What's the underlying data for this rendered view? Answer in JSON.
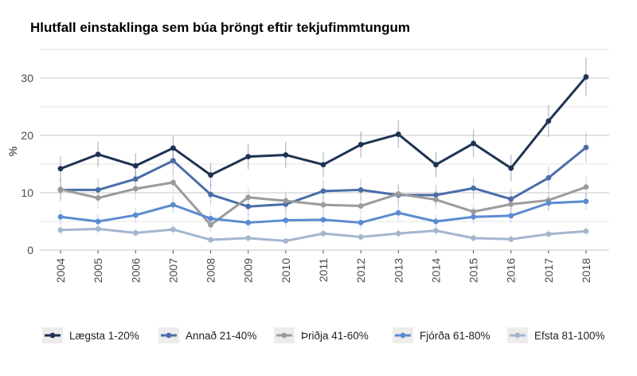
{
  "chart_data": {
    "type": "line",
    "title": "Hlutfall einstaklinga sem búa þröngt eftir tekjufimmtungum",
    "xlabel": "",
    "ylabel": "%",
    "ylim": [
      0,
      35
    ],
    "yticks": [
      0,
      10,
      20,
      30
    ],
    "grid": true,
    "legend_position": "bottom",
    "x": [
      "2004",
      "2005",
      "2006",
      "2007",
      "2008",
      "2009",
      "2010",
      "2011",
      "2012",
      "2013",
      "2014",
      "2015",
      "2016",
      "2017",
      "2018"
    ],
    "series": [
      {
        "name": "Lægsta 1-20%",
        "color": "#1f3352",
        "values": [
          14.2,
          16.7,
          14.7,
          17.8,
          13.1,
          16.3,
          16.6,
          14.9,
          18.4,
          20.2,
          14.9,
          18.6,
          14.3,
          22.5,
          30.2
        ],
        "error": [
          2.2,
          2.2,
          2.2,
          2.2,
          2.1,
          2.2,
          2.3,
          2.2,
          2.3,
          2.4,
          2.2,
          2.4,
          2.3,
          2.8,
          3.4
        ]
      },
      {
        "name": "Annað 21-40%",
        "color": "#4a6ea8",
        "values": [
          10.5,
          10.5,
          12.4,
          15.6,
          9.7,
          7.6,
          8.0,
          10.3,
          10.5,
          9.6,
          9.6,
          10.8,
          8.9,
          12.6,
          17.9
        ],
        "error": [
          2.0,
          2.0,
          2.0,
          2.2,
          1.8,
          1.7,
          1.7,
          1.9,
          1.9,
          1.8,
          1.8,
          1.9,
          1.8,
          2.1,
          2.6
        ]
      },
      {
        "name": "Þriðja 41-60%",
        "color": "#9b9b9b",
        "values": [
          10.6,
          9.1,
          10.7,
          11.8,
          4.4,
          9.2,
          8.6,
          7.9,
          7.7,
          9.8,
          8.8,
          6.7,
          8.0,
          8.7,
          11.0
        ],
        "error": [
          1.9,
          1.8,
          1.9,
          2.0,
          1.2,
          1.8,
          1.7,
          1.6,
          1.6,
          1.7,
          1.7,
          1.5,
          1.6,
          1.7,
          1.9
        ]
      },
      {
        "name": "Fjórða 61-80%",
        "color": "#5b8bd0",
        "values": [
          5.8,
          5.0,
          6.1,
          7.9,
          5.5,
          4.8,
          5.2,
          5.3,
          4.8,
          6.5,
          5.0,
          5.8,
          6.0,
          8.2,
          8.5
        ],
        "error": [
          1.3,
          1.2,
          1.3,
          1.5,
          1.2,
          1.1,
          1.2,
          1.2,
          1.1,
          1.3,
          1.1,
          1.2,
          1.2,
          1.4,
          1.5
        ]
      },
      {
        "name": "Efsta 81-100%",
        "color": "#a3b6cf",
        "values": [
          3.5,
          3.7,
          3.0,
          3.6,
          1.8,
          2.1,
          1.6,
          2.9,
          2.3,
          2.9,
          3.4,
          2.1,
          1.9,
          2.8,
          3.3
        ],
        "error": [
          0.9,
          0.9,
          0.8,
          0.9,
          0.6,
          0.7,
          0.6,
          0.8,
          0.7,
          0.8,
          0.9,
          0.7,
          0.6,
          0.8,
          0.9
        ]
      }
    ]
  }
}
